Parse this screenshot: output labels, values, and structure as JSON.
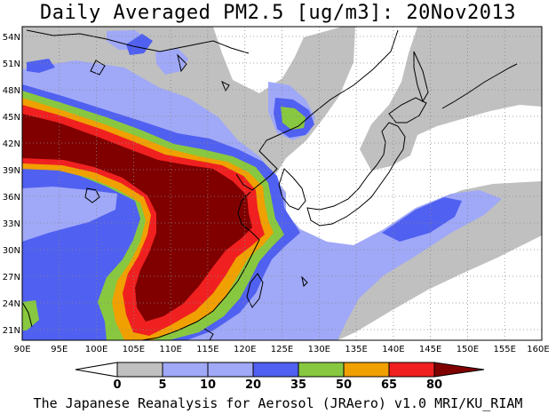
{
  "title": "Daily Averaged PM2.5 [ug/m3]: 20Nov2013",
  "footer": "The Japanese Reanalysis for Aerosol (JRAero) v1.0 MRI/KU_RIAM",
  "map": {
    "lat_labels": [
      "54N",
      "51N",
      "48N",
      "45N",
      "42N",
      "39N",
      "36N",
      "33N",
      "30N",
      "27N",
      "24N",
      "21N"
    ],
    "lon_labels": [
      "90E",
      "95E",
      "100E",
      "105E",
      "110E",
      "115E",
      "120E",
      "125E",
      "130E",
      "135E",
      "140E",
      "145E",
      "150E",
      "155E",
      "160E"
    ],
    "grid": "dotted"
  },
  "colorbar": {
    "labels": [
      "0",
      "5",
      "10",
      "20",
      "35",
      "50",
      "65",
      "80"
    ],
    "colors": [
      "#ffffff",
      "#c0c0c0",
      "#a0a8f8",
      "#5060f0",
      "#88c840",
      "#f0a000",
      "#f02020",
      "#800000"
    ]
  }
}
